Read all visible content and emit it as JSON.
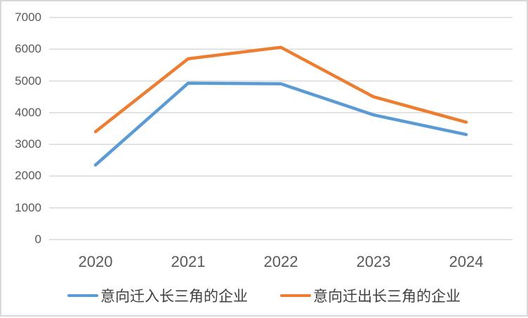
{
  "chart_data": {
    "type": "line",
    "title": "",
    "xlabel": "",
    "ylabel": "",
    "categories": [
      "2020",
      "2021",
      "2022",
      "2023",
      "2024"
    ],
    "series": [
      {
        "id": "move-in",
        "name": "意向迁入长三角的企业",
        "color": "#5B9BD5",
        "values": [
          2350,
          4930,
          4910,
          3930,
          3310
        ]
      },
      {
        "id": "move-out",
        "name": "意向迁出长三角的企业",
        "color": "#ED7D31",
        "values": [
          3400,
          5700,
          6060,
          4500,
          3700
        ]
      }
    ],
    "ylim": [
      0,
      7000
    ],
    "yticks": [
      0,
      1000,
      2000,
      3000,
      4000,
      5000,
      6000,
      7000
    ],
    "grid": "horizontal-only",
    "legend_position": "bottom-center"
  },
  "colors": {
    "background": "#FFFFFF",
    "frame_border": "#D8D8D8",
    "gridline": "#D9D9D9",
    "axis_label": "#595959",
    "legend_text": "#404040"
  }
}
